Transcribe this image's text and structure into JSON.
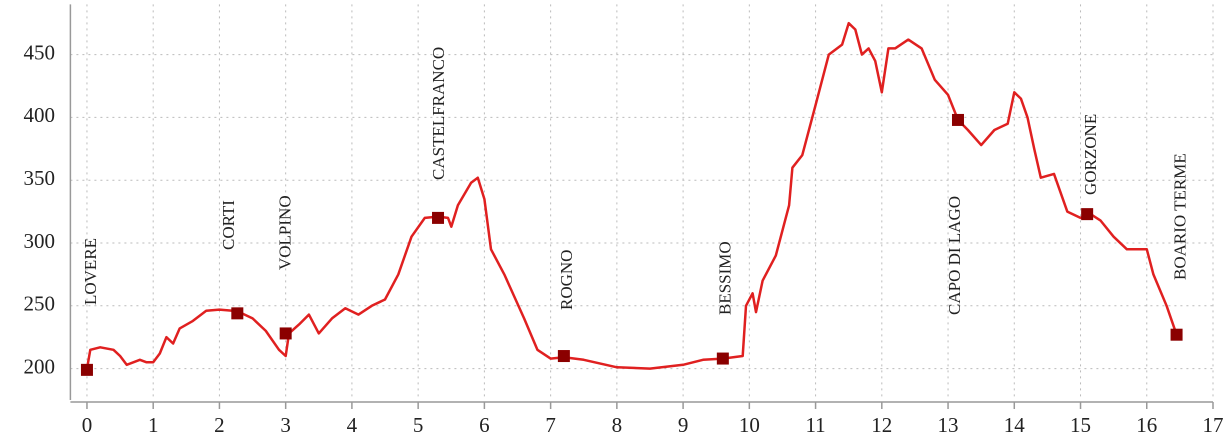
{
  "chart_data": {
    "type": "line",
    "color": "#e02020",
    "marker_color": "#8b0000",
    "grid": true,
    "xlim": [
      -0.25,
      17
    ],
    "ylim": [
      175,
      490
    ],
    "xticks": [
      0,
      1,
      2,
      3,
      4,
      5,
      6,
      7,
      8,
      9,
      10,
      11,
      12,
      13,
      14,
      15,
      16,
      17
    ],
    "yticks": [
      200,
      250,
      300,
      350,
      400,
      450
    ],
    "x": [
      0,
      0.05,
      0.2,
      0.4,
      0.5,
      0.6,
      0.8,
      0.9,
      1.0,
      1.1,
      1.2,
      1.3,
      1.4,
      1.6,
      1.8,
      2.0,
      2.2,
      2.3,
      2.5,
      2.7,
      2.9,
      3.0,
      3.05,
      3.2,
      3.35,
      3.5,
      3.7,
      3.9,
      4.1,
      4.3,
      4.5,
      4.7,
      4.9,
      5.1,
      5.3,
      5.45,
      5.5,
      5.6,
      5.8,
      5.9,
      6.0,
      6.1,
      6.3,
      6.6,
      6.8,
      7.0,
      7.2,
      7.5,
      8.0,
      8.5,
      9.0,
      9.3,
      9.6,
      9.9,
      9.95,
      10.05,
      10.1,
      10.2,
      10.4,
      10.6,
      10.65,
      10.8,
      11.0,
      11.2,
      11.4,
      11.5,
      11.6,
      11.7,
      11.8,
      11.9,
      12.0,
      12.1,
      12.2,
      12.4,
      12.6,
      12.8,
      13.0,
      13.15,
      13.3,
      13.5,
      13.7,
      13.9,
      14.0,
      14.1,
      14.2,
      14.3,
      14.4,
      14.6,
      14.8,
      15.0,
      15.15,
      15.3,
      15.5,
      15.7,
      16.0,
      16.1,
      16.3,
      16.45
    ],
    "values": [
      200,
      215,
      217,
      215,
      210,
      203,
      207,
      205,
      205,
      212,
      225,
      220,
      232,
      238,
      246,
      247,
      246,
      245,
      240,
      230,
      215,
      210,
      228,
      235,
      243,
      228,
      240,
      248,
      243,
      250,
      255,
      275,
      305,
      320,
      321,
      320,
      313,
      330,
      348,
      352,
      335,
      295,
      275,
      240,
      215,
      208,
      209,
      207,
      201,
      200,
      203,
      207,
      208,
      210,
      250,
      260,
      245,
      270,
      290,
      330,
      360,
      370,
      410,
      450,
      458,
      475,
      470,
      450,
      455,
      445,
      420,
      455,
      455,
      462,
      455,
      430,
      418,
      398,
      390,
      378,
      390,
      395,
      420,
      415,
      400,
      375,
      352,
      355,
      325,
      320,
      323,
      318,
      305,
      295,
      295,
      275,
      250,
      227
    ],
    "stations": [
      {
        "label": "LOVERE",
        "x": 0,
        "elevation": 199
      },
      {
        "label": "CORTI",
        "x": 2.27,
        "elevation": 244
      },
      {
        "label": "VOLPINO",
        "x": 3.0,
        "elevation": 228
      },
      {
        "label": "CASTELFRANCO",
        "x": 5.3,
        "elevation": 320
      },
      {
        "label": "ROGNO",
        "x": 7.2,
        "elevation": 210
      },
      {
        "label": "BESSIMO",
        "x": 9.6,
        "elevation": 208
      },
      {
        "label": "CAPO DI LAGO",
        "x": 13.15,
        "elevation": 398
      },
      {
        "label": "GORZONE",
        "x": 15.1,
        "elevation": 323
      },
      {
        "label": "BOARIO TERME",
        "x": 16.45,
        "elevation": 227
      }
    ]
  }
}
